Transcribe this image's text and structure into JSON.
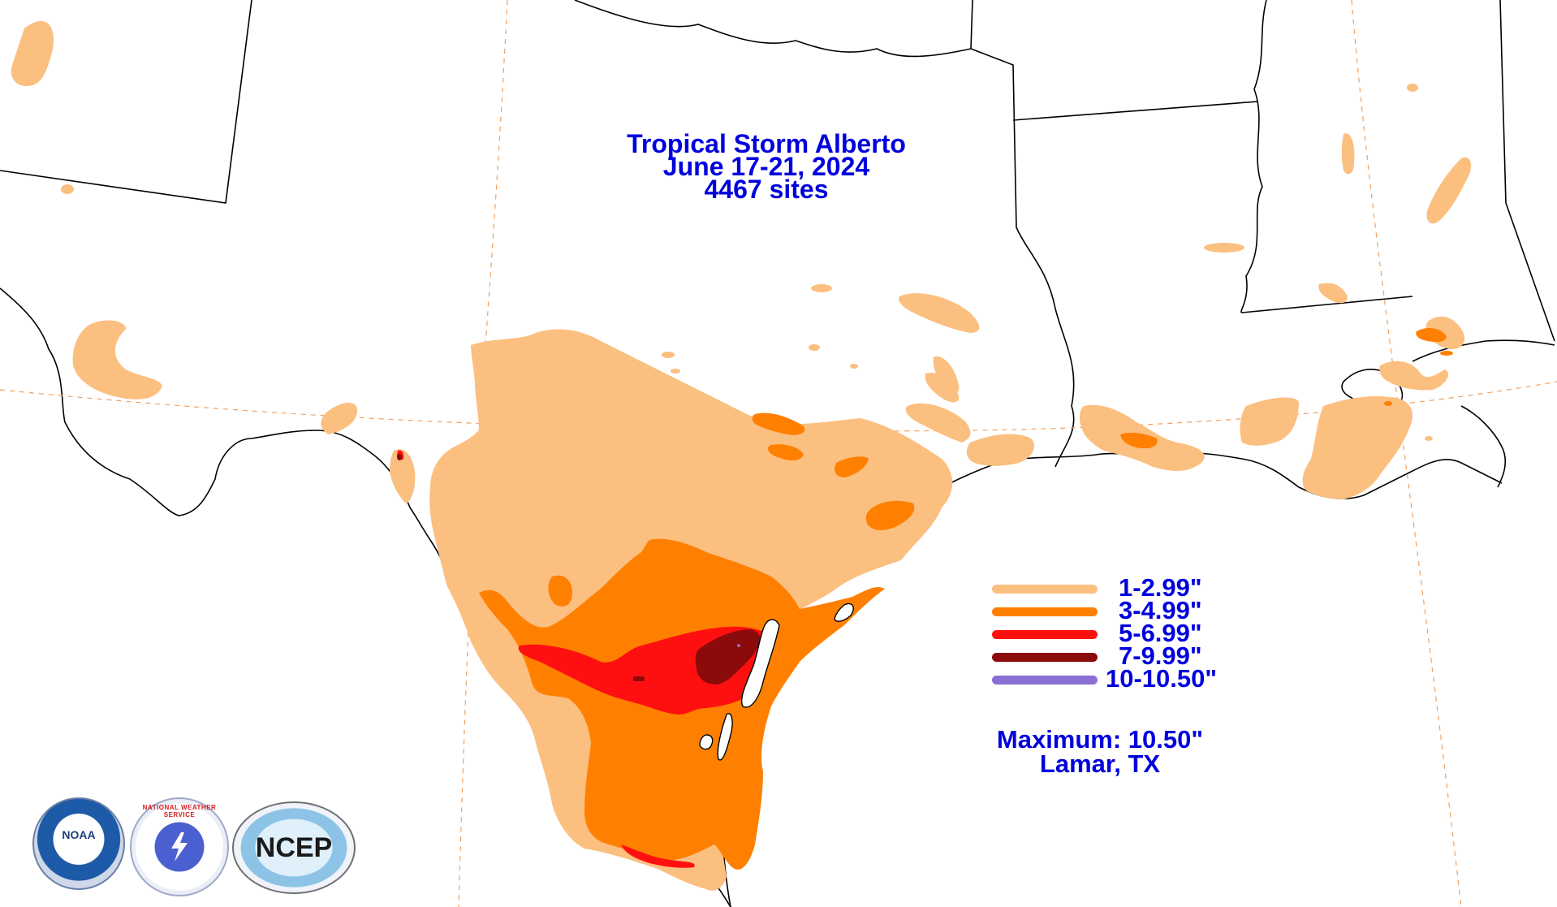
{
  "title": {
    "line1": "Tropical Storm Alberto",
    "line2": "June 17-21, 2024",
    "line3": "4467 sites"
  },
  "legend": [
    {
      "label": "1-2.99\"",
      "color": "#fbbf80"
    },
    {
      "label": "3-4.99\"",
      "color": "#ff8000"
    },
    {
      "label": "5-6.99\"",
      "color": "#ff1010"
    },
    {
      "label": "7-9.99\"",
      "color": "#8b0a0a"
    },
    {
      "label": "10-10.50\"",
      "color": "#8a6fd4"
    }
  ],
  "maximum": {
    "line1": "Maximum:  10.50\"",
    "line2": "Lamar, TX"
  },
  "logos": {
    "noaa": "NOAA",
    "nws": "NATIONAL WEATHER SERVICE",
    "ncep": "NCEP"
  }
}
